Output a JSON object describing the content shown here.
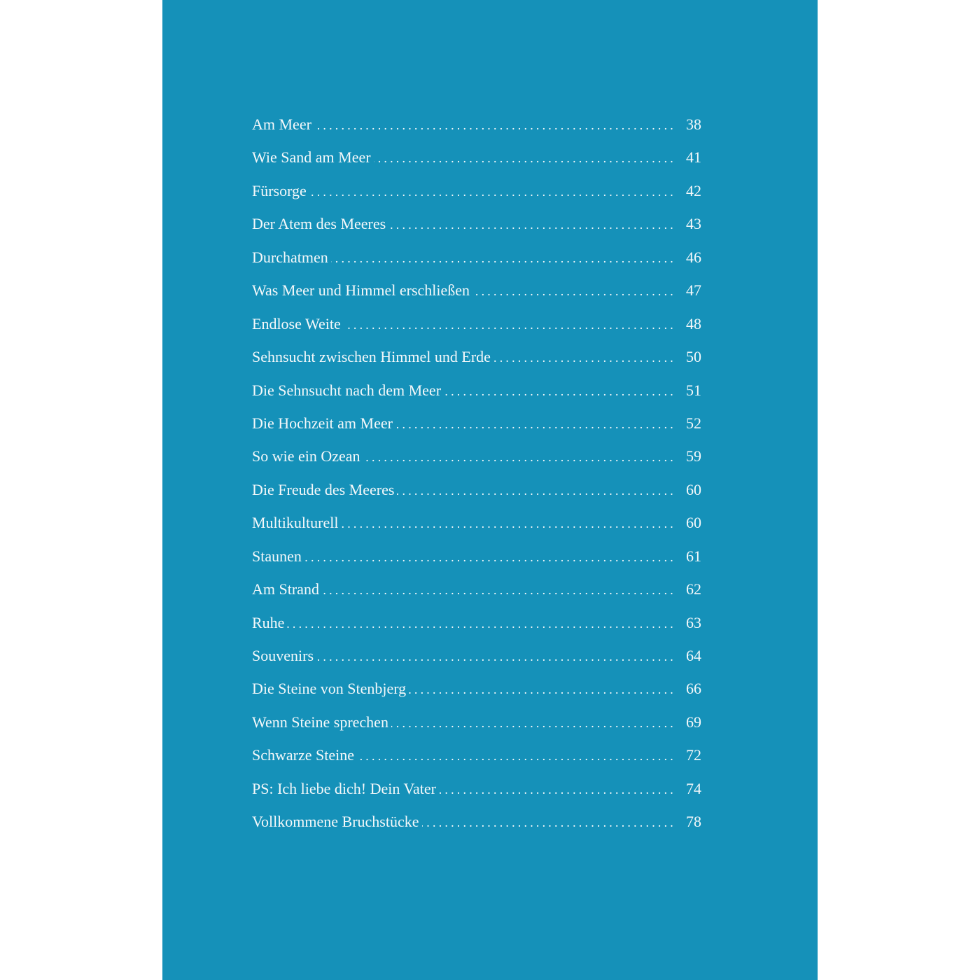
{
  "colors": {
    "page_background": "#1591b9",
    "text": "#f4f8fa"
  },
  "toc": {
    "entries": [
      {
        "title": "Am Meer",
        "page": "38"
      },
      {
        "title": "Wie Sand am Meer",
        "page": "41"
      },
      {
        "title": "Fürsorge",
        "page": "42"
      },
      {
        "title": "Der Atem des Meeres",
        "page": "43"
      },
      {
        "title": "Durchatmen",
        "page": "46"
      },
      {
        "title": "Was Meer und Himmel erschließen",
        "page": "47"
      },
      {
        "title": "Endlose Weite",
        "page": "48"
      },
      {
        "title": "Sehnsucht zwischen Himmel und Erde",
        "page": "50"
      },
      {
        "title": "Die Sehnsucht nach dem Meer",
        "page": "51"
      },
      {
        "title": "Die Hochzeit am Meer",
        "page": "52"
      },
      {
        "title": "So wie ein Ozean",
        "page": "59"
      },
      {
        "title": "Die Freude des Meeres",
        "page": "60"
      },
      {
        "title": "Multikulturell",
        "page": "60"
      },
      {
        "title": "Staunen",
        "page": "61"
      },
      {
        "title": "Am Strand",
        "page": "62"
      },
      {
        "title": "Ruhe",
        "page": "63"
      },
      {
        "title": "Souvenirs",
        "page": "64"
      },
      {
        "title": "Die Steine von Stenbjerg",
        "page": "66"
      },
      {
        "title": "Wenn Steine sprechen",
        "page": "69"
      },
      {
        "title": "Schwarze Steine",
        "page": "72"
      },
      {
        "title": "PS: Ich liebe dich! Dein Vater",
        "page": "74"
      },
      {
        "title": "Vollkommene Bruchstücke",
        "page": "78"
      }
    ]
  }
}
